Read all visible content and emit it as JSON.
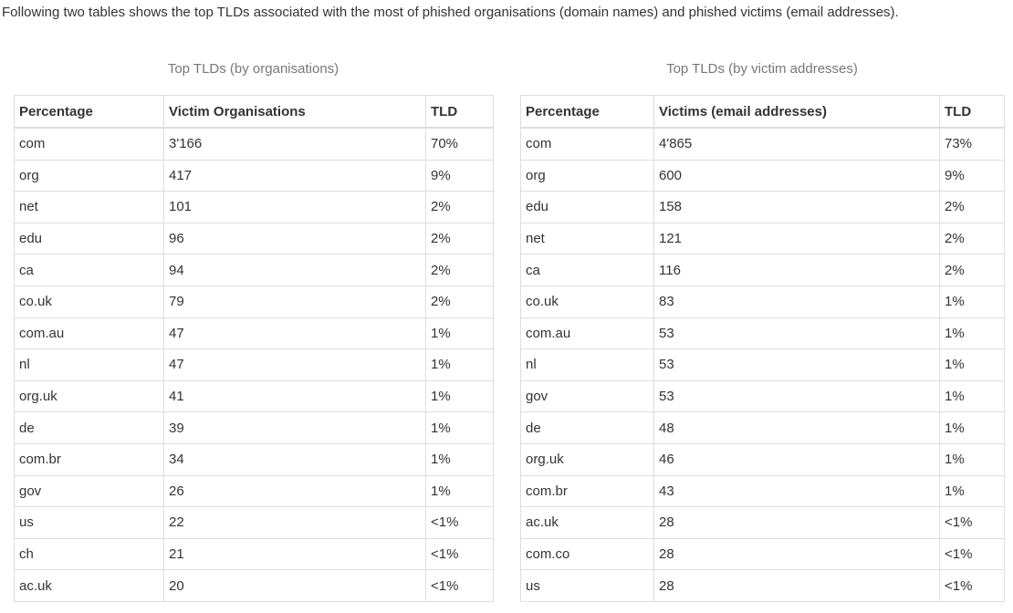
{
  "intro": "Following two tables shows the top TLDs associated with the most of phished organisations (domain names) and phished victims (email addresses).",
  "left_table": {
    "caption": "Top TLDs (by organisations)",
    "headers": [
      "Percentage",
      "Victim Organisations",
      "TLD"
    ],
    "rows": [
      [
        "com",
        "3'166",
        "70%"
      ],
      [
        "org",
        "417",
        "9%"
      ],
      [
        "net",
        "101",
        "2%"
      ],
      [
        "edu",
        "96",
        "2%"
      ],
      [
        "ca",
        "94",
        "2%"
      ],
      [
        "co.uk",
        "79",
        "2%"
      ],
      [
        "com.au",
        "47",
        "1%"
      ],
      [
        "nl",
        "47",
        "1%"
      ],
      [
        "org.uk",
        "41",
        "1%"
      ],
      [
        "de",
        "39",
        "1%"
      ],
      [
        "com.br",
        "34",
        "1%"
      ],
      [
        "gov",
        "26",
        "1%"
      ],
      [
        "us",
        "22",
        "<1%"
      ],
      [
        "ch",
        "21",
        "<1%"
      ],
      [
        "ac.uk",
        "20",
        "<1%"
      ]
    ]
  },
  "right_table": {
    "caption": "Top TLDs (by victim addresses)",
    "headers": [
      "Percentage",
      "Victims (email addresses)",
      "TLD"
    ],
    "rows": [
      [
        "com",
        "4'865",
        "73%"
      ],
      [
        "org",
        "600",
        "9%"
      ],
      [
        "edu",
        "158",
        "2%"
      ],
      [
        "net",
        "121",
        "2%"
      ],
      [
        "ca",
        "116",
        "2%"
      ],
      [
        "co.uk",
        "83",
        "1%"
      ],
      [
        "com.au",
        "53",
        "1%"
      ],
      [
        "nl",
        "53",
        "1%"
      ],
      [
        "gov",
        "53",
        "1%"
      ],
      [
        "de",
        "48",
        "1%"
      ],
      [
        "org.uk",
        "46",
        "1%"
      ],
      [
        "com.br",
        "43",
        "1%"
      ],
      [
        "ac.uk",
        "28",
        "<1%"
      ],
      [
        "com.co",
        "28",
        "<1%"
      ],
      [
        "us",
        "28",
        "<1%"
      ]
    ]
  }
}
